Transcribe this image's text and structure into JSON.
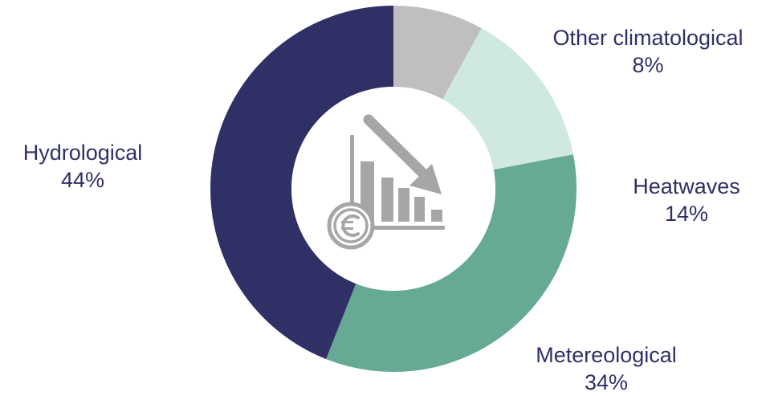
{
  "chart_data": {
    "type": "pie",
    "donut": true,
    "title": "",
    "slices": [
      {
        "label": "Other climatological",
        "value": 8,
        "display": "8%",
        "color": "#bfbfbf"
      },
      {
        "label": "Heatwaves",
        "value": 14,
        "display": "14%",
        "color": "#cfe9df"
      },
      {
        "label": "Metereological",
        "value": 34,
        "display": "34%",
        "color": "#66a994"
      },
      {
        "label": "Hydrological",
        "value": 44,
        "display": "44%",
        "color": "#2e3066"
      }
    ],
    "start_angle": "12 o'clock",
    "direction": "clockwise",
    "center_icon": "euro-declining-bar-chart-icon",
    "center_icon_color": "#a6a6a6",
    "label_color": "#2e3066"
  }
}
